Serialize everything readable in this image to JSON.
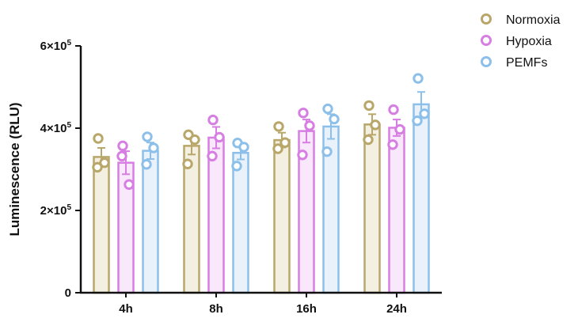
{
  "chart_data": {
    "type": "bar",
    "ylabel": "Luminescence (RLU)",
    "xlabel": "",
    "ylim": [
      0,
      600000
    ],
    "yticks": [
      {
        "value": 0,
        "base": "0",
        "exp": ""
      },
      {
        "value": 200000,
        "base": "2×10",
        "exp": "5"
      },
      {
        "value": 400000,
        "base": "4×10",
        "exp": "5"
      },
      {
        "value": 600000,
        "base": "6×10",
        "exp": "5"
      }
    ],
    "categories": [
      "4h",
      "8h",
      "16h",
      "24h"
    ],
    "legend_position": "top-right",
    "series": [
      {
        "name": "Normoxia",
        "color": "#b9a76a",
        "fill": "#f3efe1",
        "values": [
          330000,
          357000,
          371000,
          409000
        ],
        "sem": [
          22000,
          21000,
          18000,
          25000
        ],
        "points": [
          [
            375000,
            305000,
            316000
          ],
          [
            384000,
            313000,
            372000
          ],
          [
            404000,
            350000,
            365000
          ],
          [
            455000,
            372000,
            408000
          ]
        ]
      },
      {
        "name": "Hypoxia",
        "color": "#d77ee3",
        "fill": "#f9e7fb",
        "values": [
          316000,
          377000,
          393000,
          401000
        ],
        "sem": [
          28000,
          26000,
          28000,
          20000
        ],
        "points": [
          [
            357000,
            332000,
            263000
          ],
          [
            420000,
            332000,
            378000
          ],
          [
            437000,
            335000,
            406000
          ],
          [
            445000,
            360000,
            397000
          ]
        ]
      },
      {
        "name": "PEMFs",
        "color": "#8cc0ea",
        "fill": "#e9f2fb",
        "values": [
          345000,
          340000,
          404000,
          458000
        ],
        "sem": [
          20000,
          16000,
          30000,
          30000
        ],
        "points": [
          [
            379000,
            312000,
            352000
          ],
          [
            364000,
            308000,
            354000
          ],
          [
            447000,
            343000,
            422000
          ],
          [
            521000,
            418000,
            435000
          ]
        ]
      }
    ]
  }
}
